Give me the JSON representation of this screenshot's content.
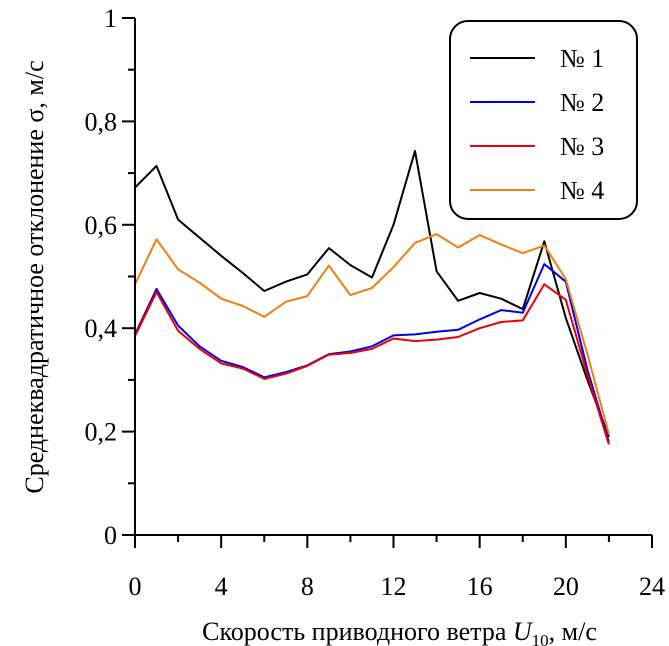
{
  "chart_data": {
    "type": "line",
    "xlabel_prefix": "Скорость приводного ветра ",
    "xlabel_var": "U",
    "xlabel_sub": "10",
    "xlabel_suffix": ", м/с",
    "ylabel": "Среднеквадратичное отклонение σ, м/с",
    "xlim": [
      0,
      24
    ],
    "ylim": [
      0,
      1
    ],
    "x_ticks": [
      0,
      4,
      8,
      12,
      16,
      20,
      24
    ],
    "x_tick_labels": [
      "0",
      "4",
      "8",
      "12",
      "16",
      "20",
      "24"
    ],
    "y_ticks": [
      0,
      0.2,
      0.4,
      0.6,
      0.8,
      1
    ],
    "y_tick_labels": [
      "0",
      "0,2",
      "0,4",
      "0,6",
      "0,8",
      "1"
    ],
    "legend_position": "top-right",
    "x": [
      0,
      1,
      2,
      3,
      4,
      5,
      6,
      7,
      8,
      9,
      10,
      11,
      12,
      13,
      14,
      15,
      16,
      17,
      18,
      19,
      20,
      21,
      22
    ],
    "series": [
      {
        "name": "№ 1",
        "color": "#000000",
        "values": [
          0.672,
          0.714,
          0.61,
          0.575,
          0.54,
          0.507,
          0.472,
          0.49,
          0.504,
          0.555,
          0.522,
          0.498,
          0.6,
          0.743,
          0.51,
          0.453,
          0.468,
          0.457,
          0.437,
          0.568,
          0.42,
          0.3,
          0.19
        ]
      },
      {
        "name": "№ 2",
        "color": "#0000ee",
        "values": [
          0.388,
          0.476,
          0.405,
          0.365,
          0.337,
          0.325,
          0.305,
          0.315,
          0.328,
          0.35,
          0.355,
          0.365,
          0.386,
          0.388,
          0.393,
          0.397,
          0.417,
          0.435,
          0.43,
          0.524,
          0.49,
          0.32,
          0.18
        ]
      },
      {
        "name": "№ 3",
        "color": "#ee0000",
        "values": [
          0.385,
          0.47,
          0.395,
          0.36,
          0.332,
          0.322,
          0.302,
          0.312,
          0.327,
          0.349,
          0.352,
          0.36,
          0.38,
          0.375,
          0.378,
          0.383,
          0.4,
          0.412,
          0.415,
          0.485,
          0.455,
          0.31,
          0.175
        ]
      },
      {
        "name": "№ 4",
        "color": "#f07f10",
        "values": [
          0.485,
          0.572,
          0.514,
          0.488,
          0.457,
          0.443,
          0.422,
          0.451,
          0.462,
          0.521,
          0.464,
          0.478,
          0.518,
          0.565,
          0.582,
          0.556,
          0.58,
          0.562,
          0.545,
          0.56,
          0.495,
          0.35,
          0.195
        ]
      }
    ]
  }
}
